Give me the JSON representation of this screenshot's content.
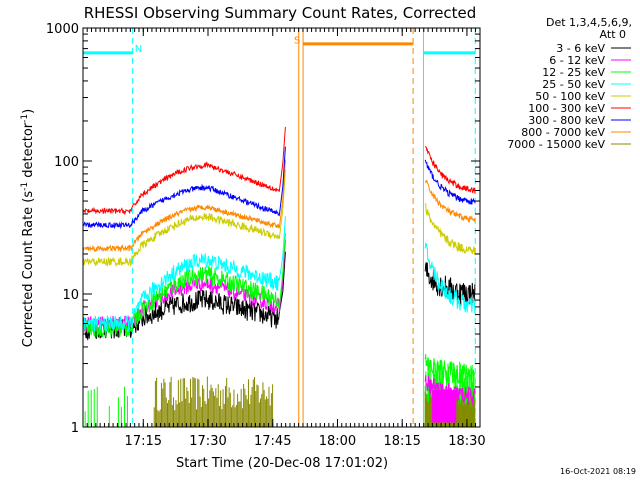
{
  "chart_data": {
    "type": "line",
    "title": "RHESSI Observing Summary Count Rates, Corrected",
    "ylabel": "Corrected Count Rate (s",
    "ylabel_sup1": "-1",
    "ylabel_mid": " detector",
    "ylabel_sup2": "-1",
    "ylabel_end": ")",
    "xlabel": "Start Time (20-Dec-08 17:01:02)",
    "y_scale": "log",
    "ylim": [
      1,
      1000
    ],
    "xlim_minutes": [
      0,
      92
    ],
    "y_ticks": [
      {
        "value": 1,
        "label": "1"
      },
      {
        "value": 10,
        "label": "10"
      },
      {
        "value": 100,
        "label": "100"
      },
      {
        "value": 1000,
        "label": "1000"
      }
    ],
    "x_ticks": [
      {
        "minute": 13.97,
        "label": "17:15"
      },
      {
        "minute": 28.97,
        "label": "17:30"
      },
      {
        "minute": 43.97,
        "label": "17:45"
      },
      {
        "minute": 58.97,
        "label": "18:00"
      },
      {
        "minute": 73.97,
        "label": "18:15"
      },
      {
        "minute": 88.97,
        "label": "18:30"
      }
    ],
    "legend_header": [
      "Det 1,3,4,5,6,9,",
      "Att 0"
    ],
    "series": [
      {
        "name": "3 - 6 keV",
        "color": "#000000",
        "pre": 5.5,
        "peak": 9,
        "end": 6.5,
        "post": 15,
        "post_end": 10,
        "noise": 0.08
      },
      {
        "name": "6 - 12 keV",
        "color": "#ff00ff",
        "pre": 6,
        "peak": 12,
        "end": 8,
        "post": 2.2,
        "post_end": 1.7,
        "noise": 0.06
      },
      {
        "name": "12 - 25 keV",
        "color": "#00ff00",
        "pre": 5.5,
        "peak": 14,
        "end": 9,
        "post": 3,
        "post_end": 2.5,
        "noise": 0.07
      },
      {
        "name": "25 - 50 keV",
        "color": "#00ffff",
        "pre": 6,
        "peak": 18,
        "end": 12,
        "post": 22,
        "post_end": 8,
        "noise": 0.06
      },
      {
        "name": "50 - 100 keV",
        "color": "#cccc00",
        "pre": 17.5,
        "peak": 38,
        "end": 27,
        "post": 45,
        "post_end": 21,
        "noise": 0.03
      },
      {
        "name": "100 - 300 keV",
        "color": "#ff0000",
        "pre": 42,
        "peak": 93,
        "end": 60,
        "post": 130,
        "post_end": 60,
        "noise": 0.02
      },
      {
        "name": "300 - 800 keV",
        "color": "#0000ff",
        "pre": 33,
        "peak": 63,
        "end": 40,
        "post": 100,
        "post_end": 49,
        "noise": 0.02
      },
      {
        "name": "800 - 7000 keV",
        "color": "#ff8800",
        "pre": 22,
        "peak": 45,
        "end": 32,
        "post": 72,
        "post_end": 36,
        "noise": 0.02
      },
      {
        "name": "7000 - 15000 keV",
        "color": "#888800",
        "pre": null,
        "peak": null,
        "end": null,
        "post": null,
        "post_end": null,
        "noise": 0
      }
    ],
    "annotations": [
      {
        "label": "N",
        "color": "#00ffff",
        "minute": 12.0,
        "y": 650
      },
      {
        "label": "S",
        "color": "#ff8800",
        "minute": 48.9,
        "y": 750
      }
    ],
    "marker_lines": [
      {
        "minute": 11.5,
        "color": "#00ffff",
        "style": "dashed"
      },
      {
        "minute": 50.0,
        "color": "#ff8800",
        "style": "solid"
      },
      {
        "minute": 51.0,
        "color": "#ff8800",
        "style": "solid"
      },
      {
        "minute": 76.5,
        "color": "#ff8800",
        "style": "dashed"
      },
      {
        "minute": 78.9,
        "color": "#00ffff",
        "style": "solid"
      },
      {
        "minute": 90.9,
        "color": "#00ffff",
        "style": "dashed"
      }
    ],
    "top_bars": [
      {
        "color": "#00ffff",
        "from": 0,
        "to": 11.5,
        "y": 650
      },
      {
        "color": "#ff8800",
        "from": 51.0,
        "to": 76.5,
        "y": 760
      },
      {
        "color": "#00ffff",
        "from": 78.9,
        "to": 90.9,
        "y": 650
      }
    ],
    "timestamp": "16-Oct-2021 08:19"
  }
}
